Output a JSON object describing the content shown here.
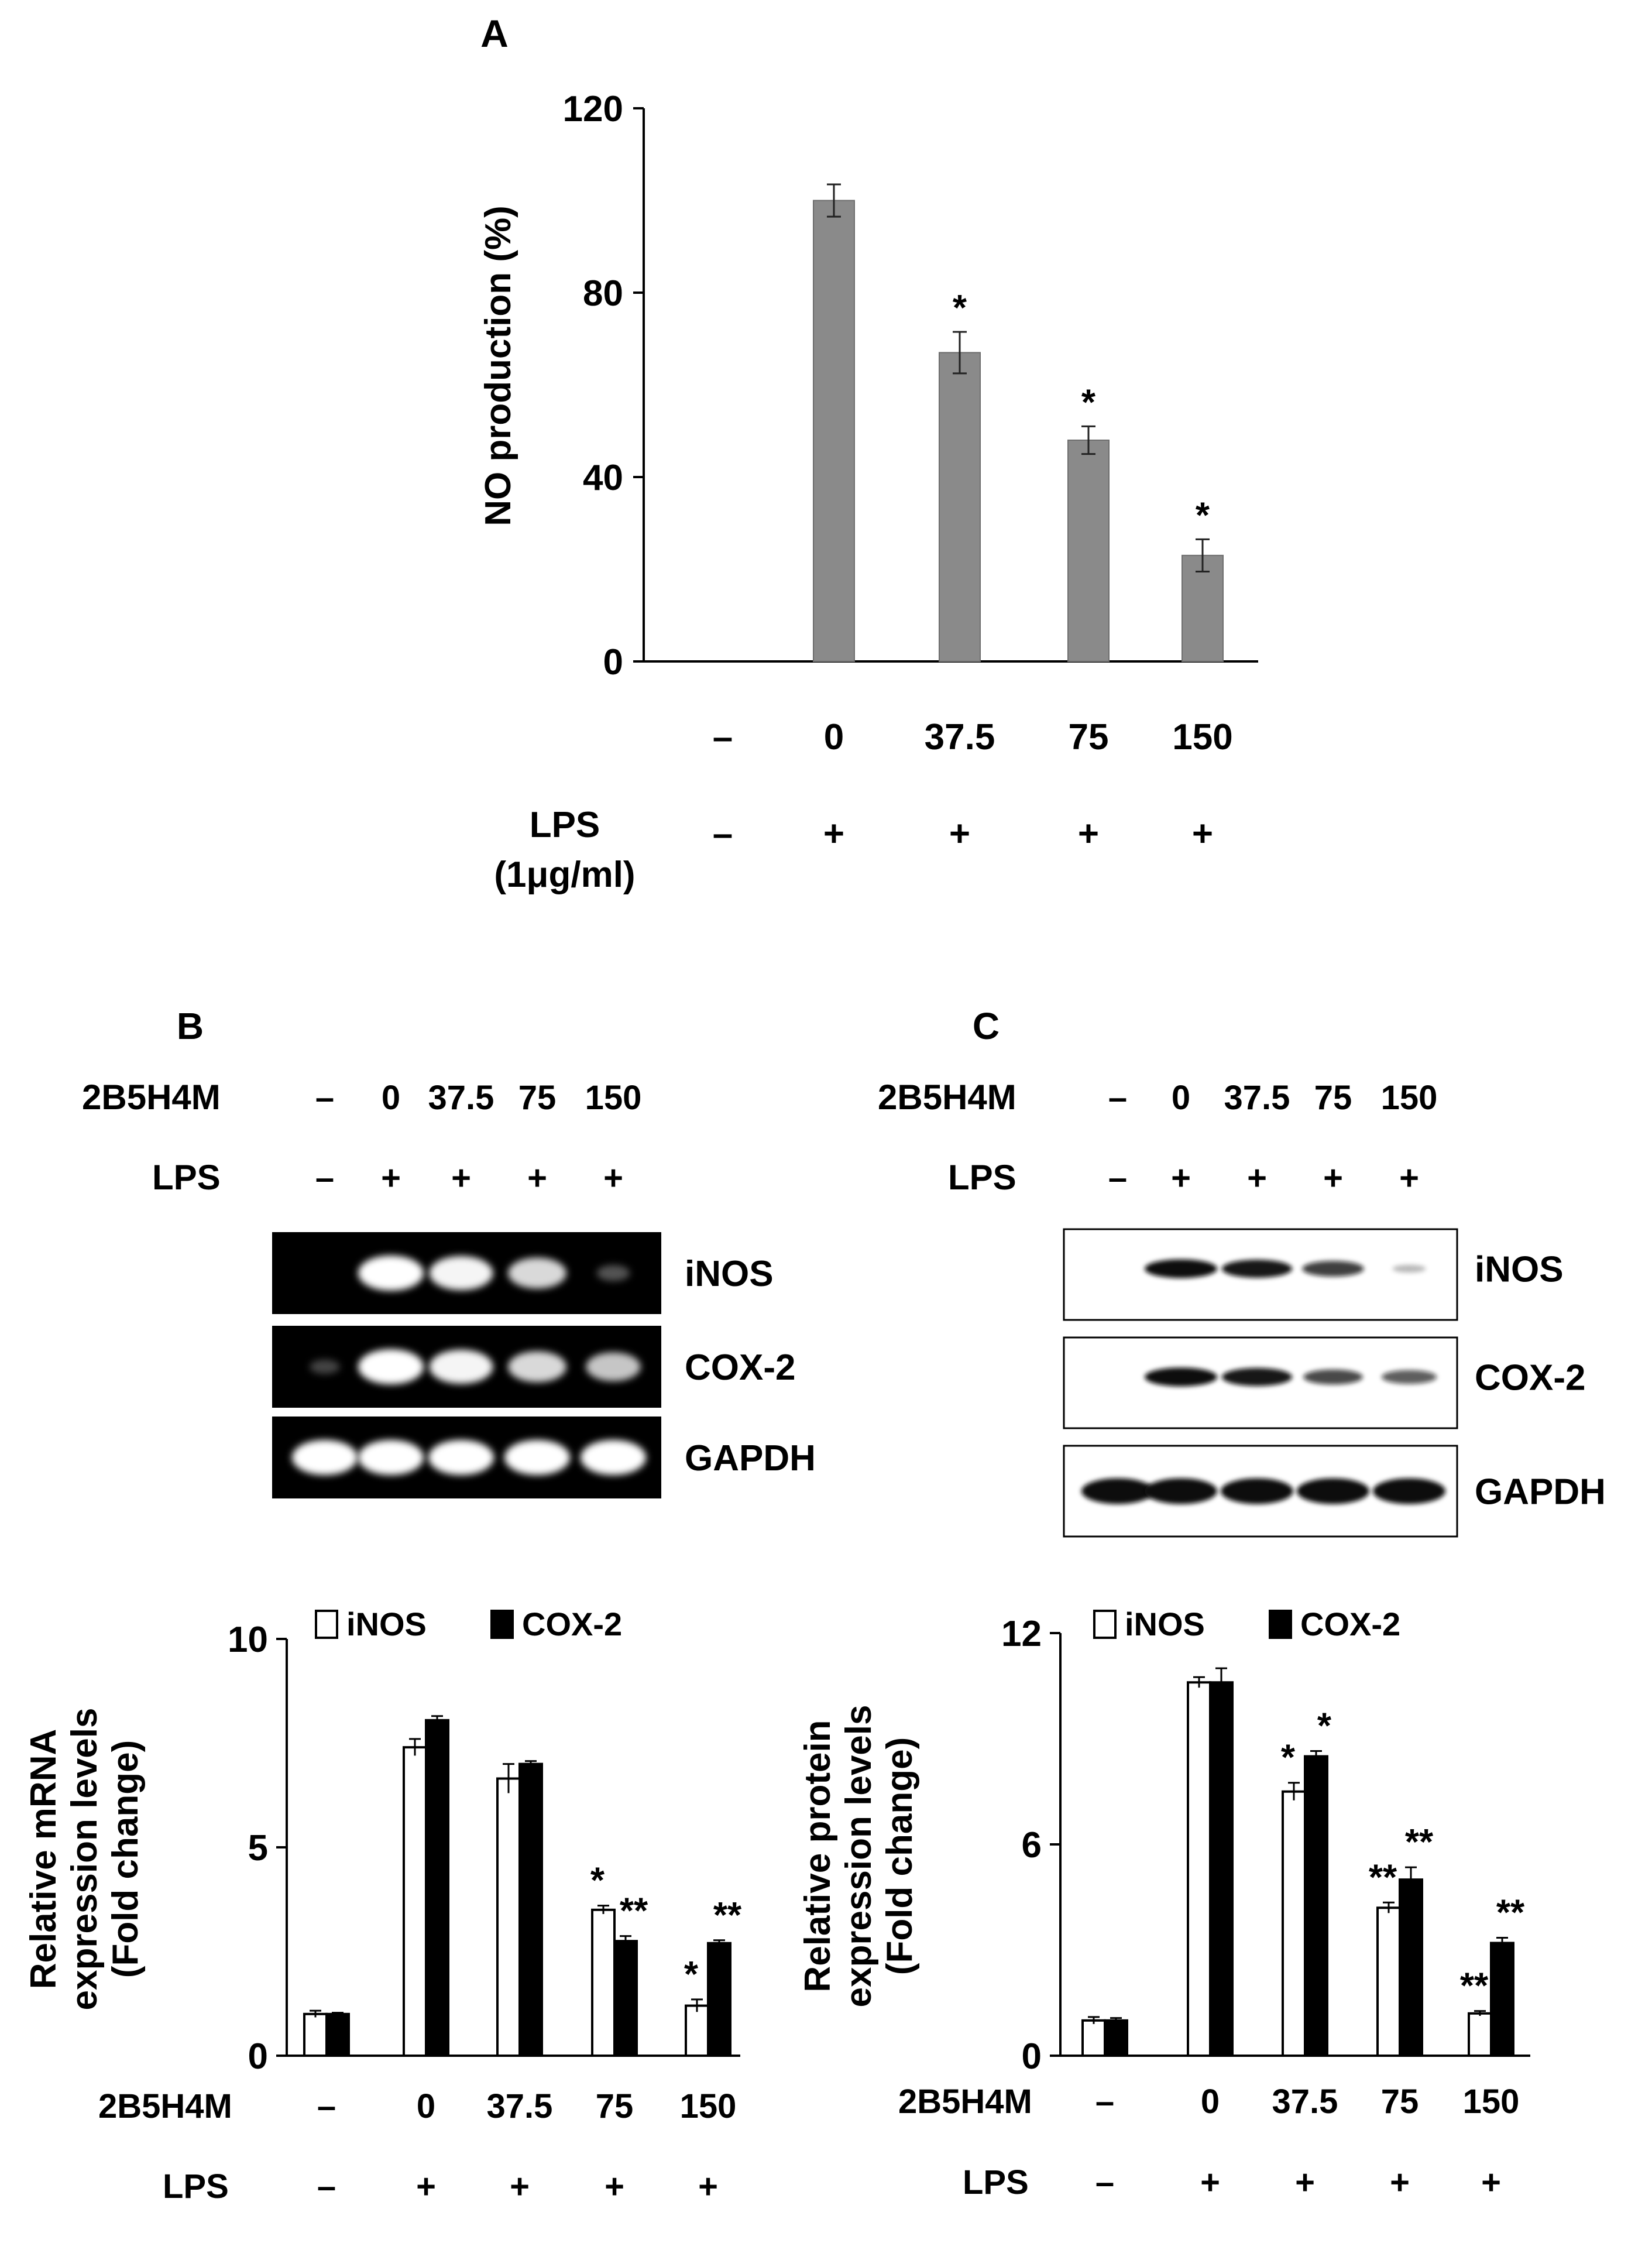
{
  "colors": {
    "bar_gray": "#8a8a8a",
    "white_bar": "#ffffff",
    "black_bar": "#000000",
    "gel_bg": "#000000",
    "gel_band": "#ffffff",
    "blot_bg": "#ffffff",
    "blot_band": "#111111"
  },
  "panel_a": {
    "letter": "A",
    "ylabel": "NO production (%)",
    "lps_label_1": "LPS",
    "lps_label_2": "(1μg/ml)"
  },
  "panel_b": {
    "letter": "B",
    "row1_label": "2B5H4M",
    "row2_label": "LPS",
    "doses": [
      "–",
      "0",
      "37.5",
      "75",
      "150"
    ],
    "lps": [
      "–",
      "+",
      "+",
      "+",
      "+"
    ],
    "gel_labels": [
      "iNOS",
      "COX-2",
      "GAPDH"
    ],
    "gel_band_intensity": [
      [
        0,
        1.0,
        0.95,
        0.8,
        0.1
      ],
      [
        0.02,
        1.0,
        0.95,
        0.8,
        0.7
      ],
      [
        1.0,
        1.0,
        1.0,
        1.0,
        1.0
      ]
    ]
  },
  "panel_c": {
    "letter": "C",
    "row1_label": "2B5H4M",
    "row2_label": "LPS",
    "doses": [
      "–",
      "0",
      "37.5",
      "75",
      "150"
    ],
    "lps": [
      "–",
      "+",
      "+",
      "+",
      "+"
    ],
    "blot_labels": [
      "iNOS",
      "COX-2",
      "GAPDH"
    ],
    "blot_band_intensity": [
      [
        0,
        1.0,
        0.95,
        0.75,
        0.1
      ],
      [
        0,
        1.0,
        0.95,
        0.7,
        0.6
      ],
      [
        1.0,
        1.0,
        1.0,
        1.0,
        1.0
      ]
    ]
  },
  "chart_data": [
    {
      "type": "bar",
      "title": "",
      "ylabel": "NO production (%)",
      "xlabel": "",
      "ylim": [
        0,
        120
      ],
      "yticks": [
        0,
        40,
        80,
        120
      ],
      "categories": [
        "–",
        "0",
        "37.5",
        "75",
        "150"
      ],
      "lps": [
        "–",
        "+",
        "+",
        "+",
        "+"
      ],
      "values": [
        0,
        100,
        67,
        48,
        23
      ],
      "errors": [
        0,
        3.5,
        4.5,
        3,
        3.5
      ],
      "significance": [
        "",
        "",
        "*",
        "*",
        "*"
      ]
    },
    {
      "type": "bar",
      "ylabel_lines": [
        "Relative mRNA",
        "expression levels",
        "(Fold change)"
      ],
      "ylim": [
        0,
        10
      ],
      "yticks": [
        0,
        5,
        10
      ],
      "xrow1_label": "2B5H4M",
      "xrow2_label": "LPS",
      "categories": [
        "–",
        "0",
        "37.5",
        "75",
        "150"
      ],
      "lps": [
        "–",
        "+",
        "+",
        "+",
        "+"
      ],
      "series": [
        {
          "name": "iNOS",
          "values": [
            1.0,
            7.4,
            6.65,
            3.5,
            1.2
          ],
          "errors": [
            0.08,
            0.2,
            0.35,
            0.1,
            0.15
          ],
          "significance": [
            "",
            "",
            "",
            "*",
            "*"
          ]
        },
        {
          "name": "COX-2",
          "values": [
            1.0,
            8.05,
            7.0,
            2.75,
            2.7
          ],
          "errors": [
            0.03,
            0.1,
            0.07,
            0.12,
            0.07
          ],
          "significance": [
            "",
            "",
            "",
            "**",
            "**"
          ]
        }
      ]
    },
    {
      "type": "bar",
      "ylabel_lines": [
        "Relative protein",
        "expression levels",
        "(Fold change)"
      ],
      "ylim": [
        0,
        12
      ],
      "yticks": [
        0,
        6,
        12
      ],
      "xrow1_label": "2B5H4M",
      "xrow2_label": "LPS",
      "categories": [
        "–",
        "0",
        "37.5",
        "75",
        "150"
      ],
      "lps": [
        "–",
        "+",
        "+",
        "+",
        "+"
      ],
      "series": [
        {
          "name": "iNOS",
          "values": [
            1.0,
            10.6,
            7.5,
            4.2,
            1.2
          ],
          "errors": [
            0.1,
            0.15,
            0.25,
            0.15,
            0.07
          ],
          "significance": [
            "",
            "",
            "*",
            "**",
            "**"
          ]
        },
        {
          "name": "COX-2",
          "values": [
            1.0,
            10.6,
            8.5,
            5.0,
            3.2
          ],
          "errors": [
            0.07,
            0.4,
            0.15,
            0.35,
            0.15
          ],
          "significance": [
            "",
            "",
            "*",
            "**",
            "**"
          ]
        }
      ]
    }
  ]
}
